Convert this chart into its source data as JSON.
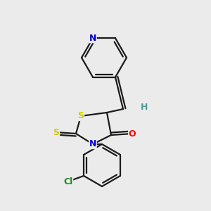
{
  "background_color": "#ebebeb",
  "bond_color": "#1a1a1a",
  "atom_colors": {
    "N": "#0000cc",
    "O": "#ff0000",
    "S_yellow": "#cccc00",
    "Cl": "#1a8c1a",
    "H": "#4d9999",
    "C": "#1a1a1a"
  },
  "bond_width": 1.6,
  "figsize": [
    3.0,
    3.0
  ],
  "dpi": 100
}
